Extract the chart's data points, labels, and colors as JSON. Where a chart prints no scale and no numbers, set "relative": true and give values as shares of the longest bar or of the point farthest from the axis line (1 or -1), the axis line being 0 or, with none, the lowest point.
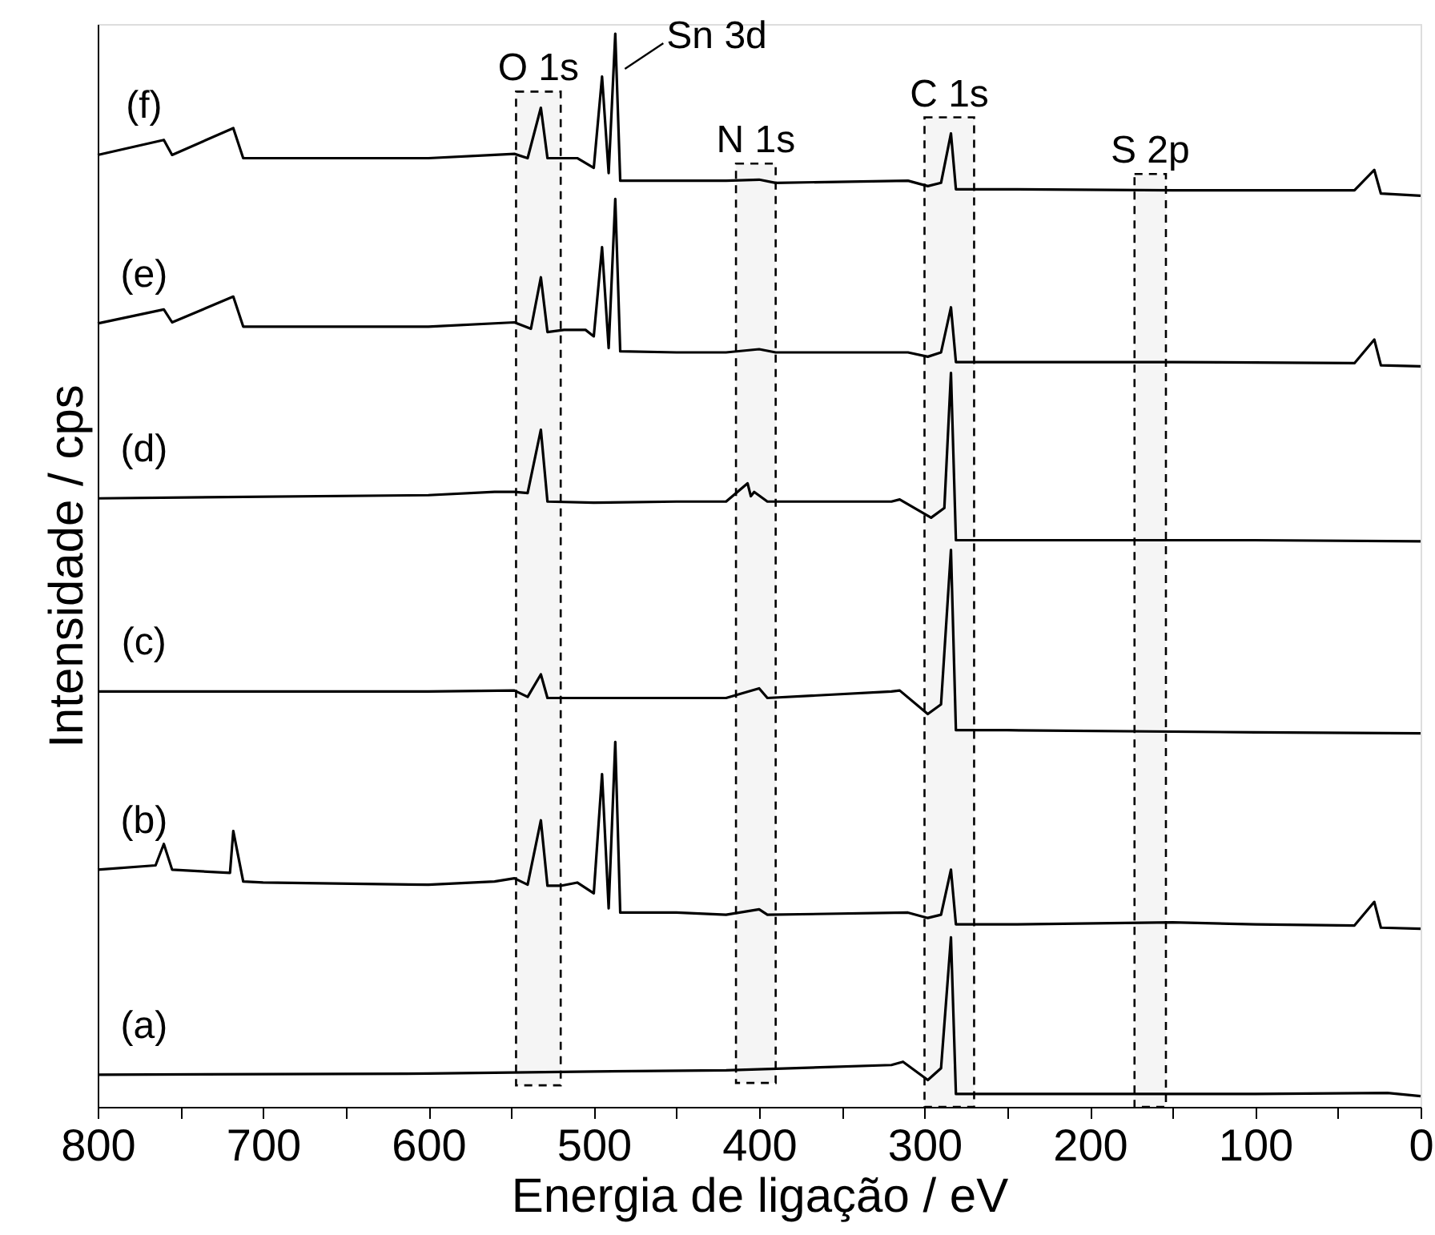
{
  "chart_data": {
    "type": "line",
    "xlabel": "Energia de ligação / eV",
    "ylabel": "Intensidade / cps",
    "relative": true,
    "xlim": [
      800,
      0
    ],
    "xticks": [
      0,
      {
        "value": 50,
        "label": null
      },
      100,
      {
        "value": 150,
        "label": null
      },
      200,
      {
        "value": 250,
        "label": null
      },
      300,
      {
        "value": 350,
        "label": null
      },
      400,
      {
        "value": 450,
        "label": null
      },
      500,
      {
        "value": 550,
        "label": null
      },
      600,
      {
        "value": 650,
        "label": null
      },
      700,
      {
        "value": 750,
        "label": null
      },
      800
    ],
    "series": [
      {
        "name": "(a)",
        "color": "#000000",
        "x": [
          800,
          600,
          500,
          420,
          320,
          313,
          298,
          290,
          284,
          281,
          250,
          100,
          20,
          0
        ],
        "values": [
          0.03,
          0.031,
          0.033,
          0.034,
          0.039,
          0.042,
          0.025,
          0.036,
          0.158,
          0.012,
          0.012,
          0.012,
          0.013,
          0.01
        ]
      },
      {
        "name": "(b)",
        "color": "#000000",
        "x": [
          800,
          765,
          760,
          755,
          720,
          718,
          712,
          700,
          600,
          560,
          548,
          540,
          532,
          528,
          520,
          510,
          500,
          495,
          491,
          487,
          484,
          450,
          420,
          400,
          395,
          310,
          298,
          290,
          284,
          281,
          250,
          150,
          100,
          40,
          28,
          24,
          0
        ],
        "values": [
          0.221,
          0.225,
          0.245,
          0.221,
          0.218,
          0.257,
          0.21,
          0.209,
          0.207,
          0.21,
          0.213,
          0.207,
          0.267,
          0.206,
          0.206,
          0.209,
          0.199,
          0.31,
          0.185,
          0.34,
          0.181,
          0.181,
          0.179,
          0.184,
          0.179,
          0.181,
          0.176,
          0.179,
          0.221,
          0.17,
          0.17,
          0.172,
          0.17,
          0.169,
          0.191,
          0.167,
          0.166
        ]
      },
      {
        "name": "(c)",
        "color": "#000000",
        "x": [
          800,
          600,
          548,
          540,
          532,
          528,
          500,
          420,
          400,
          395,
          320,
          315,
          298,
          290,
          284,
          281,
          250,
          100,
          0
        ],
        "values": [
          0.387,
          0.387,
          0.388,
          0.382,
          0.403,
          0.381,
          0.381,
          0.381,
          0.39,
          0.381,
          0.387,
          0.388,
          0.366,
          0.375,
          0.519,
          0.351,
          0.351,
          0.349,
          0.348
        ]
      },
      {
        "name": "(d)",
        "color": "#000000",
        "x": [
          800,
          600,
          560,
          548,
          540,
          532,
          528,
          500,
          450,
          420,
          407,
          405,
          403,
          395,
          320,
          315,
          296,
          288,
          284,
          281,
          250,
          100,
          0
        ],
        "values": [
          0.567,
          0.57,
          0.573,
          0.573,
          0.572,
          0.631,
          0.564,
          0.563,
          0.564,
          0.564,
          0.581,
          0.569,
          0.573,
          0.564,
          0.564,
          0.566,
          0.549,
          0.558,
          0.684,
          0.528,
          0.528,
          0.528,
          0.527
        ]
      },
      {
        "name": "(e)",
        "color": "#000000",
        "x": [
          800,
          760,
          755,
          718,
          712,
          600,
          548,
          538,
          532,
          528,
          518,
          505,
          500,
          495,
          491,
          487,
          484,
          450,
          420,
          400,
          390,
          310,
          298,
          290,
          284,
          281,
          250,
          150,
          40,
          28,
          24,
          0
        ],
        "values": [
          0.73,
          0.743,
          0.731,
          0.755,
          0.727,
          0.727,
          0.731,
          0.725,
          0.773,
          0.722,
          0.724,
          0.724,
          0.718,
          0.801,
          0.707,
          0.846,
          0.704,
          0.703,
          0.703,
          0.706,
          0.703,
          0.703,
          0.699,
          0.703,
          0.745,
          0.694,
          0.694,
          0.694,
          0.693,
          0.715,
          0.691,
          0.69
        ]
      },
      {
        "name": "(f)",
        "color": "#000000",
        "x": [
          800,
          760,
          755,
          718,
          712,
          600,
          560,
          548,
          540,
          532,
          528,
          520,
          510,
          500,
          495,
          491,
          487,
          484,
          450,
          420,
          400,
          390,
          310,
          298,
          290,
          284,
          281,
          250,
          150,
          100,
          40,
          28,
          24,
          0
        ],
        "values": [
          0.887,
          0.901,
          0.887,
          0.912,
          0.884,
          0.884,
          0.887,
          0.888,
          0.884,
          0.931,
          0.884,
          0.884,
          0.884,
          0.875,
          0.96,
          0.87,
          1.0,
          0.863,
          0.863,
          0.863,
          0.864,
          0.861,
          0.863,
          0.858,
          0.861,
          0.907,
          0.855,
          0.855,
          0.854,
          0.854,
          0.854,
          0.873,
          0.851,
          0.849
        ]
      }
    ],
    "bands": [
      {
        "axis": "x",
        "from": 547,
        "to": 520,
        "label": "O 1s"
      },
      {
        "axis": "x",
        "from": 414,
        "to": 390,
        "label": "N 1s"
      },
      {
        "axis": "x",
        "from": 300,
        "to": 270,
        "label": "C 1s"
      },
      {
        "axis": "x",
        "from": 173,
        "to": 154,
        "label": "S 2p"
      }
    ],
    "annotations": [
      {
        "text": "Sn 3d",
        "x": 487,
        "y": 1.0
      }
    ]
  }
}
